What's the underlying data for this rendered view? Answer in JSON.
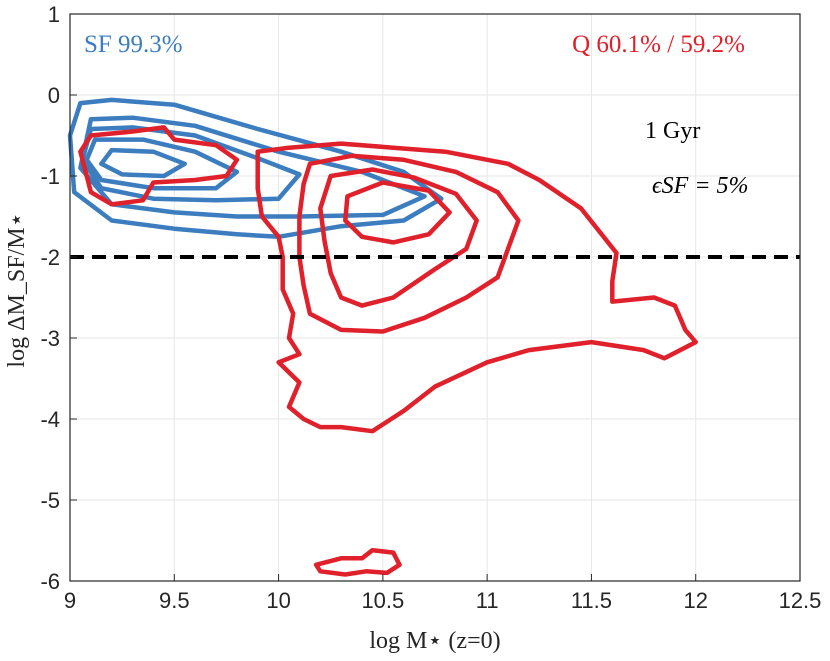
{
  "chart_data": {
    "type": "contour",
    "xlabel": "log M⋆ (z=0)",
    "ylabel": "log ΔM_SF/M⋆",
    "xlim": [
      9,
      12.5
    ],
    "ylim": [
      -6,
      1
    ],
    "xticks": [
      "9",
      "9.5",
      "10",
      "10.5",
      "11",
      "11.5",
      "12",
      "12.5"
    ],
    "yticks": [
      "1",
      "0",
      "-1",
      "-2",
      "-3",
      "-4",
      "-5",
      "-6"
    ],
    "grid": true,
    "threshold_line": {
      "y": -2,
      "style": "dashed",
      "color": "#000000"
    },
    "annotations": {
      "sf_label": "SF 99.3%",
      "q_label": "Q 60.1% / 59.2%",
      "time_label": "1 Gyr",
      "eps_label": "ϵSF = 5%"
    },
    "colors": {
      "sf": "#3b7dbf",
      "q": "#e0202a",
      "grid": "#e6e6e6",
      "axis": "#262626"
    },
    "series": [
      {
        "label": "SF 99.3%",
        "color": "#3b7dbf",
        "contours": [
          [
            [
              9.05,
              -0.1
            ],
            [
              9.2,
              -0.06
            ],
            [
              9.5,
              -0.12
            ],
            [
              9.9,
              -0.42
            ],
            [
              10.3,
              -0.7
            ],
            [
              10.6,
              -0.95
            ],
            [
              10.78,
              -1.28
            ],
            [
              10.6,
              -1.55
            ],
            [
              10.3,
              -1.62
            ],
            [
              10.0,
              -1.75
            ],
            [
              9.8,
              -1.72
            ],
            [
              9.5,
              -1.65
            ],
            [
              9.2,
              -1.55
            ],
            [
              9.02,
              -1.2
            ],
            [
              9.0,
              -0.5
            ]
          ],
          [
            [
              9.1,
              -0.3
            ],
            [
              9.3,
              -0.28
            ],
            [
              9.6,
              -0.38
            ],
            [
              10.0,
              -0.7
            ],
            [
              10.4,
              -0.95
            ],
            [
              10.7,
              -1.25
            ],
            [
              10.5,
              -1.48
            ],
            [
              10.1,
              -1.5
            ],
            [
              9.8,
              -1.5
            ],
            [
              9.5,
              -1.45
            ],
            [
              9.2,
              -1.35
            ],
            [
              9.05,
              -0.9
            ]
          ],
          [
            [
              9.1,
              -0.42
            ],
            [
              9.3,
              -0.4
            ],
            [
              9.6,
              -0.5
            ],
            [
              9.9,
              -0.78
            ],
            [
              10.1,
              -0.98
            ],
            [
              10.0,
              -1.28
            ],
            [
              9.7,
              -1.3
            ],
            [
              9.4,
              -1.28
            ],
            [
              9.15,
              -1.15
            ],
            [
              9.06,
              -0.8
            ]
          ],
          [
            [
              9.12,
              -0.55
            ],
            [
              9.35,
              -0.55
            ],
            [
              9.6,
              -0.7
            ],
            [
              9.8,
              -0.95
            ],
            [
              9.7,
              -1.15
            ],
            [
              9.4,
              -1.15
            ],
            [
              9.15,
              -1.05
            ],
            [
              9.08,
              -0.8
            ]
          ],
          [
            [
              9.2,
              -0.68
            ],
            [
              9.4,
              -0.7
            ],
            [
              9.55,
              -0.85
            ],
            [
              9.45,
              -1.0
            ],
            [
              9.25,
              -0.98
            ],
            [
              9.15,
              -0.85
            ]
          ]
        ]
      },
      {
        "label": "Q 60.1% / 59.2%",
        "color": "#e0202a",
        "contours": [
          [
            [
              9.05,
              -0.7
            ],
            [
              9.1,
              -0.5
            ],
            [
              9.3,
              -0.45
            ],
            [
              9.45,
              -0.4
            ],
            [
              9.5,
              -0.55
            ],
            [
              9.7,
              -0.62
            ],
            [
              9.8,
              -0.8
            ],
            [
              9.75,
              -1.0
            ],
            [
              9.6,
              -1.05
            ],
            [
              9.4,
              -1.08
            ],
            [
              9.35,
              -1.3
            ],
            [
              9.2,
              -1.35
            ],
            [
              9.1,
              -1.2
            ]
          ],
          [
            [
              9.9,
              -0.7
            ],
            [
              10.05,
              -0.65
            ],
            [
              10.3,
              -0.6
            ],
            [
              10.55,
              -0.65
            ],
            [
              10.8,
              -0.7
            ],
            [
              11.1,
              -0.85
            ],
            [
              11.25,
              -1.05
            ],
            [
              11.45,
              -1.4
            ],
            [
              11.62,
              -1.95
            ],
            [
              11.6,
              -2.3
            ],
            [
              11.6,
              -2.55
            ],
            [
              11.8,
              -2.5
            ],
            [
              11.9,
              -2.6
            ],
            [
              11.95,
              -2.9
            ],
            [
              12.0,
              -3.05
            ],
            [
              11.85,
              -3.25
            ],
            [
              11.75,
              -3.15
            ],
            [
              11.5,
              -3.05
            ],
            [
              11.2,
              -3.15
            ],
            [
              11.0,
              -3.3
            ],
            [
              10.75,
              -3.6
            ],
            [
              10.6,
              -3.9
            ],
            [
              10.45,
              -4.15
            ],
            [
              10.3,
              -4.1
            ],
            [
              10.2,
              -4.1
            ],
            [
              10.12,
              -4.0
            ],
            [
              10.05,
              -3.85
            ],
            [
              10.1,
              -3.55
            ],
            [
              10.0,
              -3.3
            ],
            [
              10.1,
              -3.2
            ],
            [
              10.05,
              -3.0
            ],
            [
              10.07,
              -2.7
            ],
            [
              10.02,
              -2.4
            ],
            [
              10.02,
              -2.0
            ],
            [
              10.0,
              -1.75
            ],
            [
              9.92,
              -1.5
            ],
            [
              9.9,
              -1.15
            ]
          ],
          [
            [
              10.15,
              -0.85
            ],
            [
              10.35,
              -0.75
            ],
            [
              10.6,
              -0.8
            ],
            [
              10.85,
              -0.95
            ],
            [
              11.05,
              -1.2
            ],
            [
              11.15,
              -1.55
            ],
            [
              11.1,
              -1.9
            ],
            [
              11.05,
              -2.25
            ],
            [
              10.9,
              -2.5
            ],
            [
              10.7,
              -2.75
            ],
            [
              10.5,
              -2.92
            ],
            [
              10.3,
              -2.9
            ],
            [
              10.15,
              -2.7
            ],
            [
              10.12,
              -2.35
            ],
            [
              10.1,
              -2.0
            ],
            [
              10.1,
              -1.5
            ],
            [
              10.12,
              -1.1
            ]
          ],
          [
            [
              10.25,
              -1.0
            ],
            [
              10.45,
              -0.92
            ],
            [
              10.65,
              -1.02
            ],
            [
              10.85,
              -1.22
            ],
            [
              10.95,
              -1.55
            ],
            [
              10.9,
              -1.9
            ],
            [
              10.75,
              -2.15
            ],
            [
              10.55,
              -2.5
            ],
            [
              10.4,
              -2.6
            ],
            [
              10.3,
              -2.5
            ],
            [
              10.25,
              -2.2
            ],
            [
              10.22,
              -1.8
            ],
            [
              10.2,
              -1.4
            ]
          ],
          [
            [
              10.33,
              -1.25
            ],
            [
              10.5,
              -1.08
            ],
            [
              10.72,
              -1.18
            ],
            [
              10.82,
              -1.45
            ],
            [
              10.72,
              -1.72
            ],
            [
              10.55,
              -1.82
            ],
            [
              10.4,
              -1.75
            ],
            [
              10.32,
              -1.55
            ]
          ],
          [
            [
              10.18,
              -5.8
            ],
            [
              10.3,
              -5.72
            ],
            [
              10.4,
              -5.72
            ],
            [
              10.45,
              -5.62
            ],
            [
              10.55,
              -5.65
            ],
            [
              10.58,
              -5.8
            ],
            [
              10.52,
              -5.9
            ],
            [
              10.42,
              -5.88
            ],
            [
              10.32,
              -5.92
            ],
            [
              10.2,
              -5.88
            ]
          ]
        ]
      }
    ]
  }
}
